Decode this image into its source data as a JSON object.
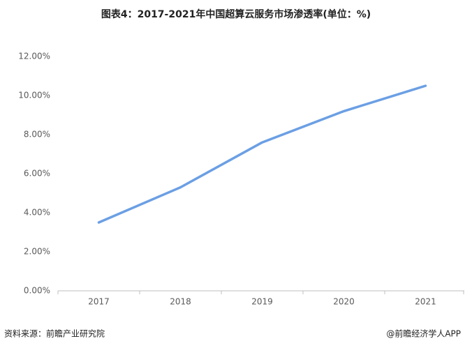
{
  "chart_data": {
    "type": "line",
    "title": "图表4：2017-2021年中国超算云服务市场渗透率(单位：%)",
    "categories": [
      "2017",
      "2018",
      "2019",
      "2020",
      "2021"
    ],
    "series": [
      {
        "name": "渗透率",
        "color": "#6b9fe4",
        "values": [
          3.5,
          5.3,
          7.6,
          9.2,
          10.5
        ]
      }
    ],
    "ylim": [
      0,
      12
    ],
    "yticks": [
      {
        "value": 0,
        "label": "0.00%"
      },
      {
        "value": 2,
        "label": "2.00%"
      },
      {
        "value": 4,
        "label": "4.00%"
      },
      {
        "value": 6,
        "label": "6.00%"
      },
      {
        "value": 8,
        "label": "8.00%"
      },
      {
        "value": 10,
        "label": "10.00%"
      },
      {
        "value": 12,
        "label": "12.00%"
      }
    ],
    "grid": false,
    "source": "资料来源：前瞻产业研究院",
    "credit": "@前瞻经济学人APP"
  }
}
